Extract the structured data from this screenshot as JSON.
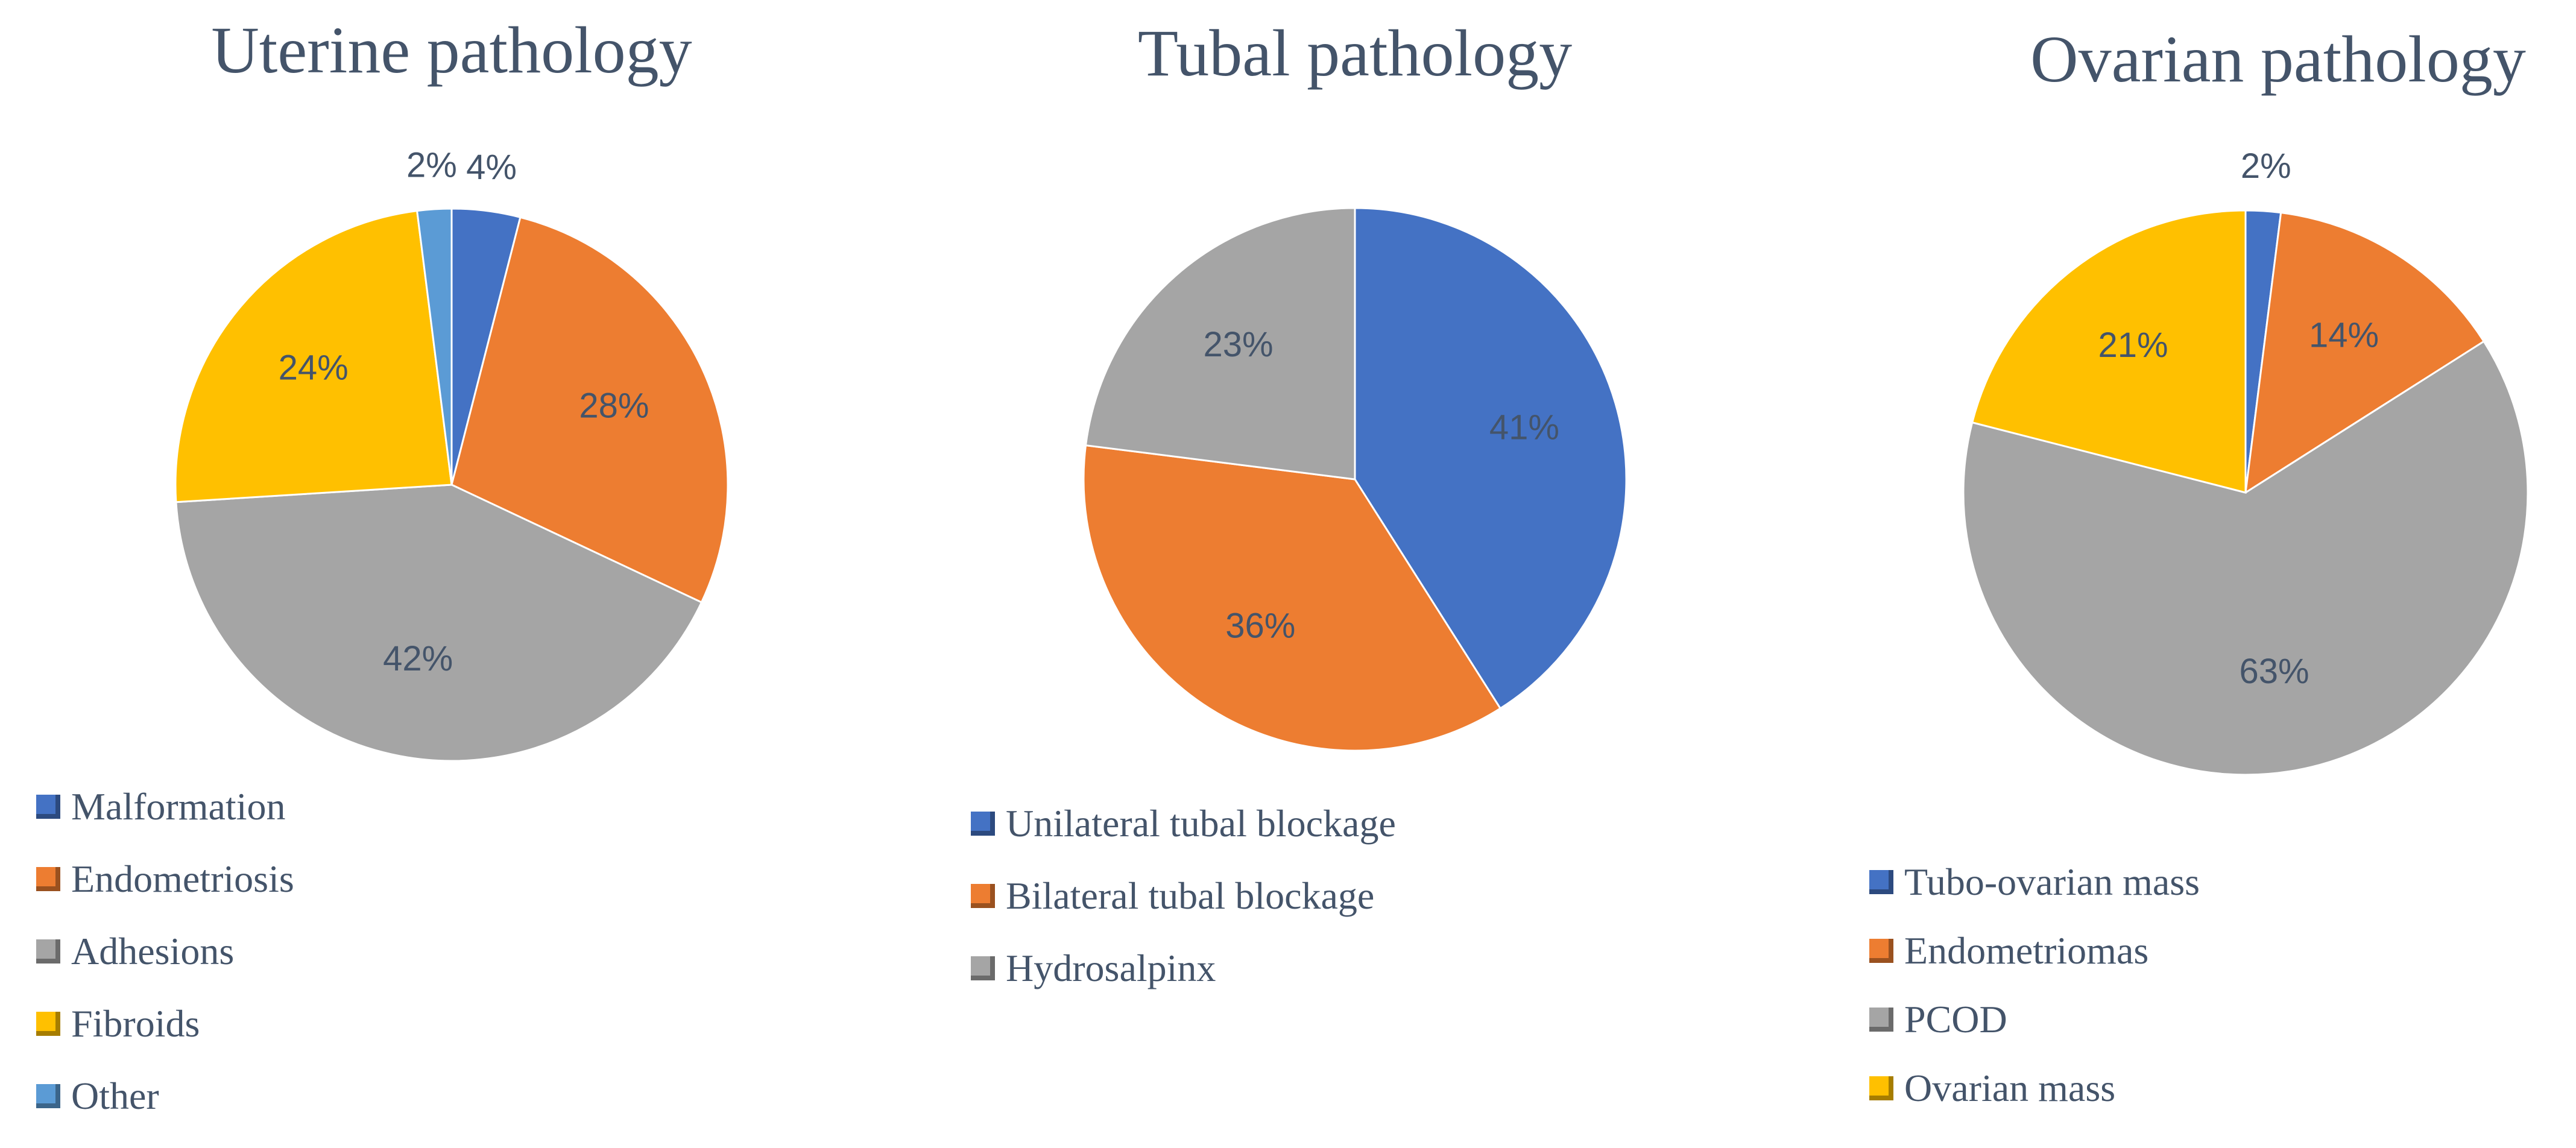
{
  "chart_data": [
    {
      "type": "pie",
      "title": "Uterine pathology",
      "categories": [
        "Malformation",
        "Endometriosis",
        "Adhesions",
        "Fibroids",
        "Other"
      ],
      "values": [
        4,
        28,
        42,
        24,
        2
      ],
      "value_labels": [
        "4%",
        "28%",
        "42%",
        "24%",
        "2%"
      ],
      "colors": [
        "#4472c4",
        "#ed7d31",
        "#a5a5a5",
        "#ffc000",
        "#5b9bd5"
      ]
    },
    {
      "type": "pie",
      "title": "Tubal pathology",
      "categories": [
        "Unilateral tubal blockage",
        "Bilateral tubal blockage",
        "Hydrosalpinx"
      ],
      "values": [
        41,
        36,
        23
      ],
      "value_labels": [
        "41%",
        "36%",
        "23%"
      ],
      "colors": [
        "#4472c4",
        "#ed7d31",
        "#a5a5a5"
      ]
    },
    {
      "type": "pie",
      "title": "Ovarian pathology",
      "categories": [
        "Tubo-ovarian mass",
        "Endometriomas",
        "PCOD",
        "Ovarian mass"
      ],
      "values": [
        2,
        14,
        63,
        21
      ],
      "value_labels": [
        "2%",
        "14%",
        "63%",
        "21%"
      ],
      "colors": [
        "#4472c4",
        "#ed7d31",
        "#a5a5a5",
        "#ffc000"
      ]
    }
  ]
}
